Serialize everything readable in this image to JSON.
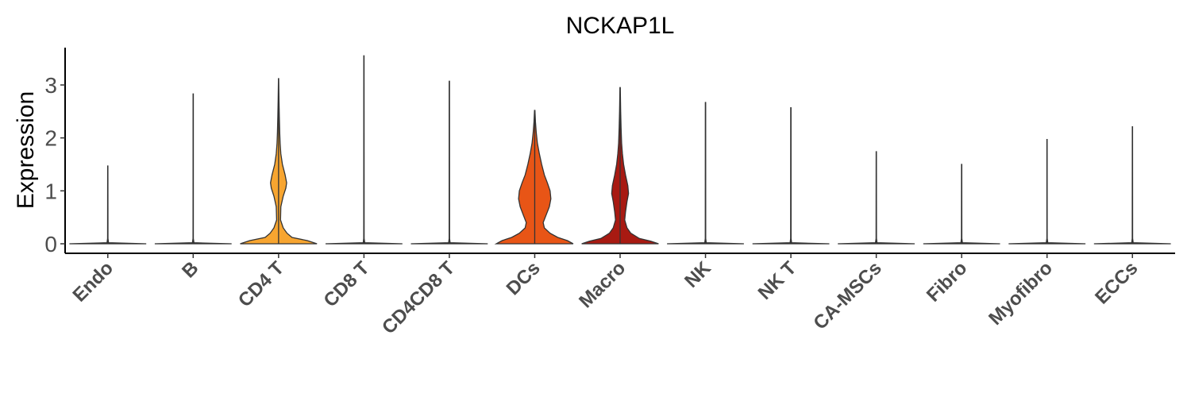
{
  "chart_data": {
    "type": "violin",
    "title": "NCKAP1L",
    "xlabel": "",
    "ylabel": "Expression",
    "ylim": [
      -0.18,
      3.7
    ],
    "yticks": [
      "0",
      "1",
      "2",
      "3"
    ],
    "grid": false,
    "legend": "none",
    "categories": [
      "Endo",
      "B",
      "CD4 T",
      "CD8 T",
      "CD4CD8 T",
      "DCs",
      "Macro",
      "NK",
      "NK T",
      "CA-MSCs",
      "Fibro",
      "Myofibro",
      "ECCs"
    ],
    "max_values": [
      1.47,
      2.83,
      3.12,
      3.55,
      3.07,
      2.52,
      2.95,
      2.67,
      2.57,
      1.74,
      1.5,
      1.97,
      2.21
    ],
    "colors": [
      "#ffffff",
      "#ffffff",
      "#f7a530",
      "#ffffff",
      "#ffffff",
      "#e85516",
      "#a81a12",
      "#ffffff",
      "#ffffff",
      "#ffffff",
      "#ffffff",
      "#ffffff",
      "#ffffff"
    ],
    "density_profiles": [
      [
        [
          0,
          1
        ],
        [
          0.02,
          0.02
        ],
        [
          0.1,
          0.005
        ],
        [
          1.47,
          0.003
        ]
      ],
      [
        [
          0,
          1
        ],
        [
          0.02,
          0.02
        ],
        [
          0.1,
          0.005
        ],
        [
          2.83,
          0.003
        ]
      ],
      [
        [
          0,
          1
        ],
        [
          0.06,
          0.75
        ],
        [
          0.12,
          0.35
        ],
        [
          0.2,
          0.22
        ],
        [
          0.3,
          0.12
        ],
        [
          0.45,
          0.05
        ],
        [
          0.7,
          0.06
        ],
        [
          0.9,
          0.12
        ],
        [
          1.05,
          0.19
        ],
        [
          1.15,
          0.21
        ],
        [
          1.3,
          0.17
        ],
        [
          1.5,
          0.1
        ],
        [
          1.7,
          0.06
        ],
        [
          1.9,
          0.04
        ],
        [
          2.1,
          0.03
        ],
        [
          2.4,
          0.02
        ],
        [
          2.7,
          0.012
        ],
        [
          3.12,
          0.003
        ]
      ],
      [
        [
          0,
          1
        ],
        [
          0.02,
          0.02
        ],
        [
          0.1,
          0.005
        ],
        [
          3.55,
          0.003
        ]
      ],
      [
        [
          0,
          1
        ],
        [
          0.02,
          0.02
        ],
        [
          0.1,
          0.005
        ],
        [
          3.07,
          0.003
        ]
      ],
      [
        [
          0,
          1
        ],
        [
          0.06,
          0.85
        ],
        [
          0.12,
          0.6
        ],
        [
          0.2,
          0.4
        ],
        [
          0.3,
          0.25
        ],
        [
          0.4,
          0.22
        ],
        [
          0.55,
          0.3
        ],
        [
          0.7,
          0.38
        ],
        [
          0.85,
          0.42
        ],
        [
          1.0,
          0.4
        ],
        [
          1.15,
          0.33
        ],
        [
          1.3,
          0.25
        ],
        [
          1.5,
          0.18
        ],
        [
          1.7,
          0.12
        ],
        [
          1.9,
          0.07
        ],
        [
          2.1,
          0.04
        ],
        [
          2.3,
          0.02
        ],
        [
          2.52,
          0.005
        ]
      ],
      [
        [
          0,
          1
        ],
        [
          0.05,
          0.8
        ],
        [
          0.1,
          0.5
        ],
        [
          0.2,
          0.28
        ],
        [
          0.3,
          0.18
        ],
        [
          0.45,
          0.12
        ],
        [
          0.6,
          0.14
        ],
        [
          0.8,
          0.18
        ],
        [
          0.95,
          0.22
        ],
        [
          1.1,
          0.2
        ],
        [
          1.3,
          0.14
        ],
        [
          1.5,
          0.09
        ],
        [
          1.7,
          0.06
        ],
        [
          1.9,
          0.04
        ],
        [
          2.2,
          0.025
        ],
        [
          2.5,
          0.015
        ],
        [
          2.95,
          0.004
        ]
      ],
      [
        [
          0,
          1
        ],
        [
          0.02,
          0.02
        ],
        [
          0.1,
          0.005
        ],
        [
          2.67,
          0.003
        ]
      ],
      [
        [
          0,
          1
        ],
        [
          0.02,
          0.02
        ],
        [
          0.1,
          0.005
        ],
        [
          2.57,
          0.003
        ]
      ],
      [
        [
          0,
          1
        ],
        [
          0.02,
          0.02
        ],
        [
          0.1,
          0.005
        ],
        [
          1.74,
          0.003
        ]
      ],
      [
        [
          0,
          1
        ],
        [
          0.02,
          0.02
        ],
        [
          0.1,
          0.005
        ],
        [
          1.5,
          0.003
        ]
      ],
      [
        [
          0,
          1
        ],
        [
          0.02,
          0.02
        ],
        [
          0.1,
          0.005
        ],
        [
          1.97,
          0.003
        ]
      ],
      [
        [
          0,
          1
        ],
        [
          0.02,
          0.02
        ],
        [
          0.1,
          0.005
        ],
        [
          2.21,
          0.003
        ]
      ]
    ]
  }
}
